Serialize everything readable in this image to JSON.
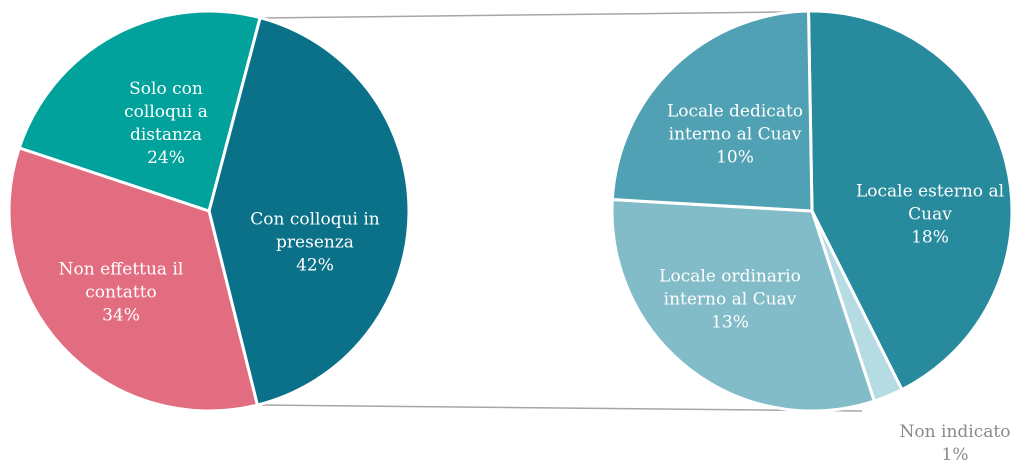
{
  "chart_data": [
    {
      "type": "pie",
      "categories": [
        "Con colloqui in presenza",
        "Non effettua il contatto",
        "Solo con colloqui a distanza"
      ],
      "values": [
        42,
        34,
        24
      ],
      "value_labels": [
        "42%",
        "34%",
        "24%"
      ],
      "colors": [
        "#0b7189",
        "#e26c80",
        "#00a29b"
      ]
    },
    {
      "type": "pie",
      "categories": [
        "Locale esterno al Cuav",
        "Non indicato",
        "Locale ordinario interno al Cuav",
        "Locale dedicato interno al Cuav"
      ],
      "values": [
        18,
        1,
        13,
        10
      ],
      "value_labels": [
        "18%",
        "1%",
        "13%",
        "10%"
      ],
      "colors": [
        "#288b9d",
        "#b6dce3",
        "#82bcc8",
        "#50a1b3"
      ]
    }
  ]
}
